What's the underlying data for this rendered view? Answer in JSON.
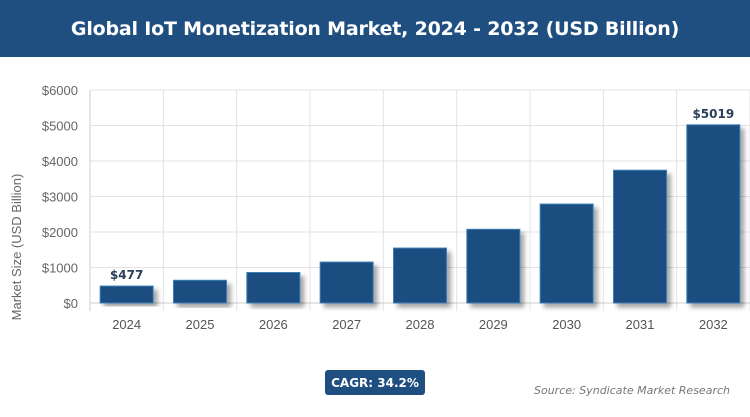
{
  "title": "Global IoT Monetization Market, 2024 - 2032 (USD Billion)",
  "cagr_label": "CAGR: 34.2%",
  "source": "Source: Syndicate Market Research",
  "colors": {
    "bar": "#1f4e80",
    "bar_border": "#3a7fb8",
    "header": "#1f4e80"
  },
  "chart_data": {
    "type": "bar",
    "title": "Global IoT Monetization Market, 2024 - 2032 (USD Billion)",
    "xlabel": "",
    "ylabel": "Market Size (USD Billion)",
    "categories": [
      "2024",
      "2025",
      "2026",
      "2027",
      "2028",
      "2029",
      "2030",
      "2031",
      "2032"
    ],
    "values": [
      477,
      640,
      859,
      1153,
      1547,
      2076,
      2787,
      3740,
      5019
    ],
    "data_labels": {
      "0": "$477",
      "8": "$5019"
    },
    "ylim": [
      0,
      6000
    ],
    "yticks": [
      0,
      1000,
      2000,
      3000,
      4000,
      5000,
      6000
    ],
    "ytick_labels": [
      "$0",
      "$1000",
      "$2000",
      "$3000",
      "$4000",
      "$5000",
      "$6000"
    ],
    "grid": true
  }
}
